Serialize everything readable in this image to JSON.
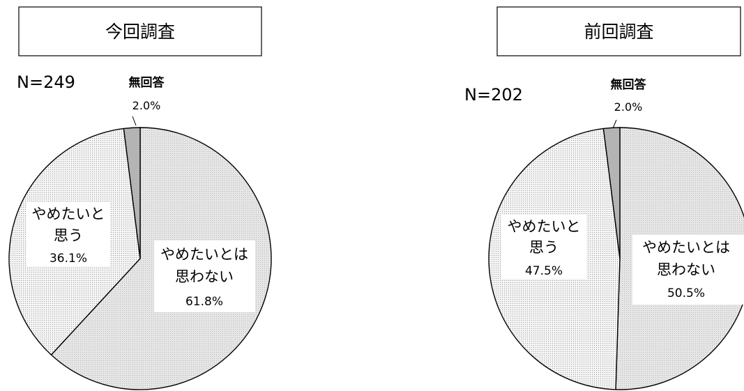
{
  "chart_data": [
    {
      "type": "pie",
      "title": "今回調査",
      "n_label": "N=249",
      "slices": [
        {
          "label_lines": [
            "やめたいとは",
            "思わない"
          ],
          "value": 61.8,
          "value_label": "61.8%",
          "color": "#e3e3e3",
          "pattern": "diagonal"
        },
        {
          "label_lines": [
            "やめたいと",
            "思う"
          ],
          "value": 36.1,
          "value_label": "36.1%",
          "color": "#f2f2f2",
          "pattern": "dots"
        },
        {
          "label_lines": [
            "無回答"
          ],
          "value": 2.0,
          "value_label": "2.0%",
          "color": "#b4b4b4",
          "pattern": "none"
        }
      ]
    },
    {
      "type": "pie",
      "title": "前回調査",
      "n_label": "N=202",
      "slices": [
        {
          "label_lines": [
            "やめたいとは",
            "思わない"
          ],
          "value": 50.5,
          "value_label": "50.5%",
          "color": "#e3e3e3",
          "pattern": "diagonal"
        },
        {
          "label_lines": [
            "やめたいと",
            "思う"
          ],
          "value": 47.5,
          "value_label": "47.5%",
          "color": "#f2f2f2",
          "pattern": "dots"
        },
        {
          "label_lines": [
            "無回答"
          ],
          "value": 2.0,
          "value_label": "2.0%",
          "color": "#b4b4b4",
          "pattern": "none"
        }
      ]
    }
  ]
}
